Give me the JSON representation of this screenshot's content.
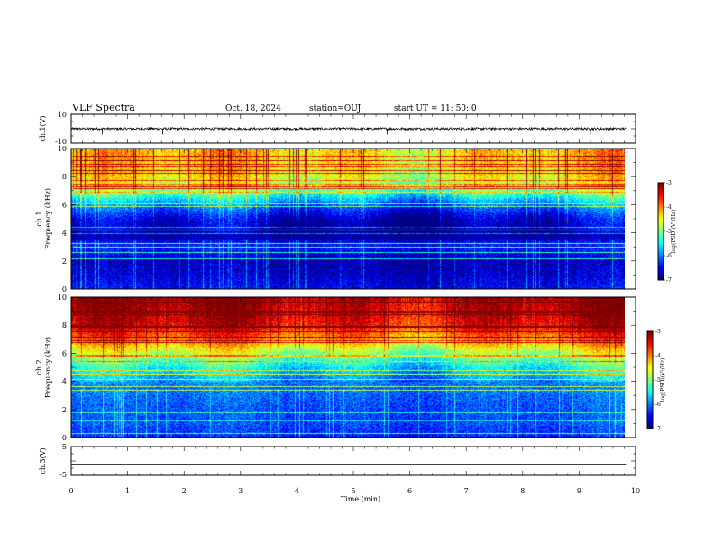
{
  "header": {
    "title": "VLF Spectra",
    "date": "Oct. 18, 2024",
    "station": "station=OUJ",
    "start": "start UT =  11: 50: 0"
  },
  "colors": {
    "trace": "#000000",
    "colormap": [
      "#00007f",
      "#0000ff",
      "#0080ff",
      "#00ffff",
      "#80ff80",
      "#ffff00",
      "#ff8000",
      "#ff0000",
      "#7f0000"
    ]
  },
  "chart_data": [
    {
      "type": "line",
      "name": "ch1_waveform",
      "ylabel": "ch.1(V)",
      "ylim": [
        -10,
        10
      ],
      "y_tick_labels": [
        "10",
        "-10"
      ],
      "xlim": [
        0,
        10
      ],
      "baseline": 0,
      "spikes_x": [
        0.55,
        1.62,
        3.36,
        5.6,
        9.2
      ],
      "grid": false
    },
    {
      "type": "heatmap",
      "name": "ch1_spectrogram",
      "ylabel": "ch.1\nFrequency (kHz)",
      "ylim": [
        0,
        10
      ],
      "y_tick_labels": [
        "0",
        "2",
        "4",
        "6",
        "8",
        "10"
      ],
      "xlim": [
        0,
        9.83
      ],
      "colorbar": {
        "label": "log(PSD)(V²/Hz)",
        "range": [
          -7,
          -3
        ],
        "tick_labels": [
          "-3",
          "-4",
          "-5",
          "-6",
          "-7"
        ]
      },
      "profile_kHz": [
        0,
        1,
        2,
        3,
        4,
        5,
        6,
        7,
        8,
        10
      ],
      "profile_logpsd": [
        -6.6,
        -6.8,
        -6.9,
        -6.5,
        -7.0,
        -6.8,
        -6.2,
        -5.2,
        -4.7,
        -4.5
      ]
    },
    {
      "type": "heatmap",
      "name": "ch2_spectrogram",
      "ylabel": "ch.2\nFrequency (kHz)",
      "ylim": [
        0,
        10
      ],
      "y_tick_labels": [
        "0",
        "2",
        "4",
        "6",
        "8",
        "10"
      ],
      "xlim": [
        0,
        9.83
      ],
      "colorbar": {
        "label": "log(PSD)(V²/Hz)",
        "range": [
          -7,
          -3
        ],
        "tick_labels": [
          "-3",
          "-4",
          "-5",
          "-6",
          "-7"
        ]
      },
      "profile_kHz": [
        0,
        1,
        2,
        3,
        4,
        5,
        6,
        7,
        8,
        10
      ],
      "profile_logpsd": [
        -6.5,
        -6.3,
        -6.3,
        -6.2,
        -6.0,
        -5.6,
        -5.0,
        -4.2,
        -3.6,
        -3.3
      ]
    },
    {
      "type": "line",
      "name": "ch3_waveform",
      "ylabel": "ch.3(V)",
      "ylim": [
        -5,
        5
      ],
      "y_tick_labels": [
        "5",
        "-5"
      ],
      "xlim": [
        0,
        10
      ],
      "values_constant": -1.2,
      "xlabel": "Time  (min)",
      "x_tick_labels": [
        "0",
        "1",
        "2",
        "3",
        "4",
        "5",
        "6",
        "7",
        "8",
        "9",
        "10"
      ],
      "grid": false
    }
  ]
}
